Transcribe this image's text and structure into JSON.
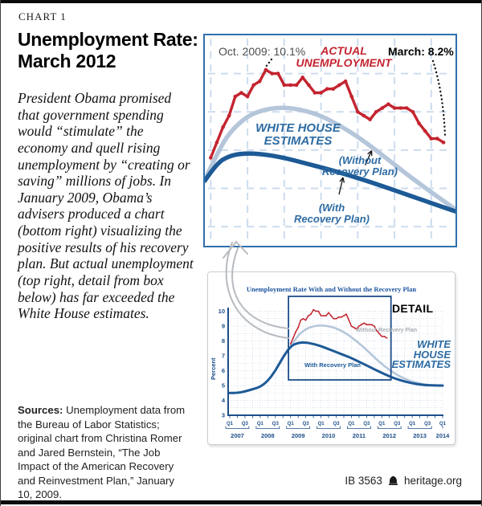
{
  "page": {
    "kicker": "CHART 1",
    "title": "Unemployment Rate:\nMarch 2012",
    "intro": "President Obama promised that government spending would “stimulate” the economy and quell rising unemployment by “creating or saving” millions of jobs. In January 2009, Obama’s advisers produced a chart (bottom right) visualizing the positive results of his recovery plan. But actual unemployment (top right, detail from box below) has far exceeded the White House estimates.",
    "sources_label": "Sources:",
    "sources_text": " Unemployment data from the Bureau of Labor Statistics; original chart from Christina Romer and Jared Bernstein, “The Job Impact of the American Recovery and Reinvestment Plan,” January 10, 2009.",
    "footer_id": "IB 3563",
    "footer_site": "heritage.org"
  },
  "colors": {
    "actual_red": "#c42430",
    "without_plan_light_blue": "#b5c6da",
    "with_plan_dark_blue": "#1d5a96",
    "chart_border_blue": "#2f6fad",
    "label_blue": "#2d6ba3",
    "axis_blue": "#1d4e89"
  },
  "chart_data": [
    {
      "id": "top-detail-chart",
      "type": "line",
      "title": "",
      "xlabel": "",
      "ylabel": "",
      "xlim": [
        2008.92,
        2012.33
      ],
      "ylim": [
        5.5,
        11.0
      ],
      "grid": "dashed light blue, half-year vertical / 1 percent horizontal",
      "labels": {
        "peak": "Oct. 2009: 10.1%",
        "actual": "ACTUAL\nUNEMPLOYMENT",
        "march": "March: 8.2%",
        "white_house": "WHITE HOUSE\nESTIMATES",
        "without": "(Without\nRecovery Plan)",
        "with_plan": "(With\nRecovery Plan)"
      },
      "series": [
        {
          "name": "Actual Unemployment (monthly, Jan 2009–Mar 2012, percent)",
          "color": "#c42430",
          "x_start": 2009.0,
          "x_step_months": 1,
          "values": [
            7.8,
            8.2,
            8.6,
            8.9,
            9.4,
            9.5,
            9.4,
            9.7,
            9.8,
            10.1,
            10.0,
            10.0,
            9.7,
            9.7,
            9.7,
            9.9,
            9.7,
            9.5,
            9.5,
            9.6,
            9.6,
            9.7,
            9.8,
            9.4,
            9.0,
            8.9,
            8.8,
            9.0,
            9.1,
            9.2,
            9.1,
            9.1,
            9.1,
            9.0,
            8.7,
            8.5,
            8.3,
            8.3,
            8.2
          ]
        },
        {
          "name": "White House Estimate — Without Recovery Plan",
          "color": "#b5c6da",
          "points": [
            [
              2008.95,
              7.35
            ],
            [
              2009.1,
              7.95
            ],
            [
              2009.25,
              8.45
            ],
            [
              2009.5,
              8.9
            ],
            [
              2009.75,
              9.07
            ],
            [
              2010.0,
              9.12
            ],
            [
              2010.25,
              9.05
            ],
            [
              2010.5,
              8.9
            ],
            [
              2010.75,
              8.65
            ],
            [
              2011.0,
              8.35
            ],
            [
              2011.25,
              8.0
            ],
            [
              2011.5,
              7.62
            ],
            [
              2011.75,
              7.25
            ],
            [
              2012.0,
              6.9
            ],
            [
              2012.33,
              6.45
            ]
          ]
        },
        {
          "name": "White House Estimate — With Recovery Plan",
          "color": "#1d5a96",
          "points": [
            [
              2008.92,
              7.2
            ],
            [
              2009.08,
              7.65
            ],
            [
              2009.25,
              7.85
            ],
            [
              2009.45,
              7.92
            ],
            [
              2009.7,
              7.9
            ],
            [
              2010.0,
              7.8
            ],
            [
              2010.3,
              7.65
            ],
            [
              2010.6,
              7.5
            ],
            [
              2010.9,
              7.33
            ],
            [
              2011.2,
              7.15
            ],
            [
              2011.5,
              6.95
            ],
            [
              2011.8,
              6.75
            ],
            [
              2012.1,
              6.55
            ],
            [
              2012.33,
              6.4
            ]
          ]
        }
      ]
    },
    {
      "id": "bottom-original-chart",
      "type": "line",
      "title": "Unemployment Rate With and Without the Recovery Plan",
      "xlabel": "",
      "ylabel": "Percent",
      "xlim": [
        2007.0,
        2014.0
      ],
      "ylim": [
        3,
        10
      ],
      "y_ticks": [
        10,
        9,
        8,
        7,
        6,
        5,
        4,
        3
      ],
      "x_quarter_labels": [
        "Q1",
        "Q3"
      ],
      "years": [
        2007,
        2008,
        2009,
        2010,
        2011,
        2012,
        2013,
        2014
      ],
      "labels": {
        "detail": "DETAIL",
        "without": "Without Recovery Plan",
        "with_plan": "With Recovery Plan",
        "white_house": "WHITE\nHOUSE\nESTIMATES"
      },
      "detail_box": {
        "x": [
          2008.93,
          2012.3
        ],
        "y": [
          5.38,
          11.0
        ]
      },
      "series": [
        {
          "name": "Actual Unemployment (monthly, Jan 2009–Mar 2012, percent)",
          "color": "#c42430",
          "x_start": 2009.0,
          "x_step_months": 1,
          "values": [
            7.8,
            8.2,
            8.6,
            8.9,
            9.4,
            9.5,
            9.4,
            9.7,
            9.8,
            10.1,
            10.0,
            10.0,
            9.7,
            9.7,
            9.7,
            9.9,
            9.7,
            9.5,
            9.5,
            9.6,
            9.6,
            9.7,
            9.8,
            9.4,
            9.0,
            8.9,
            8.8,
            9.0,
            9.1,
            9.2,
            9.1,
            9.1,
            9.1,
            9.0,
            8.7,
            8.5,
            8.3,
            8.3,
            8.2
          ]
        },
        {
          "name": "Without Recovery Plan (White House estimate)",
          "color": "#b5c6da",
          "points": [
            [
              2009.0,
              7.65
            ],
            [
              2009.25,
              8.4
            ],
            [
              2009.5,
              8.8
            ],
            [
              2009.75,
              9.0
            ],
            [
              2010.0,
              9.05
            ],
            [
              2010.25,
              9.0
            ],
            [
              2010.5,
              8.85
            ],
            [
              2010.75,
              8.6
            ],
            [
              2011.0,
              8.25
            ],
            [
              2011.25,
              7.85
            ],
            [
              2011.5,
              7.4
            ],
            [
              2011.75,
              6.9
            ],
            [
              2012.0,
              6.45
            ],
            [
              2012.25,
              6.05
            ],
            [
              2012.5,
              5.72
            ],
            [
              2012.75,
              5.45
            ],
            [
              2013.0,
              5.27
            ],
            [
              2013.25,
              5.13
            ],
            [
              2013.5,
              5.05
            ],
            [
              2013.75,
              5.0
            ],
            [
              2014.0,
              4.98
            ]
          ]
        },
        {
          "name": "History + With Recovery Plan (White House estimate)",
          "color": "#1d5a96",
          "points": [
            [
              2007.0,
              4.5
            ],
            [
              2007.25,
              4.5
            ],
            [
              2007.5,
              4.6
            ],
            [
              2007.75,
              4.75
            ],
            [
              2008.0,
              4.9
            ],
            [
              2008.25,
              5.3
            ],
            [
              2008.5,
              6.0
            ],
            [
              2008.75,
              6.9
            ],
            [
              2009.0,
              7.65
            ],
            [
              2009.25,
              7.88
            ],
            [
              2009.5,
              7.9
            ],
            [
              2009.75,
              7.8
            ],
            [
              2010.0,
              7.65
            ],
            [
              2010.25,
              7.45
            ],
            [
              2010.5,
              7.25
            ],
            [
              2010.75,
              7.05
            ],
            [
              2011.0,
              6.85
            ],
            [
              2011.25,
              6.6
            ],
            [
              2011.5,
              6.35
            ],
            [
              2011.75,
              6.1
            ],
            [
              2012.0,
              5.85
            ],
            [
              2012.25,
              5.62
            ],
            [
              2012.5,
              5.42
            ],
            [
              2012.75,
              5.27
            ],
            [
              2013.0,
              5.15
            ],
            [
              2013.25,
              5.07
            ],
            [
              2013.5,
              5.02
            ],
            [
              2013.75,
              5.0
            ],
            [
              2014.0,
              5.0
            ]
          ]
        }
      ]
    }
  ]
}
